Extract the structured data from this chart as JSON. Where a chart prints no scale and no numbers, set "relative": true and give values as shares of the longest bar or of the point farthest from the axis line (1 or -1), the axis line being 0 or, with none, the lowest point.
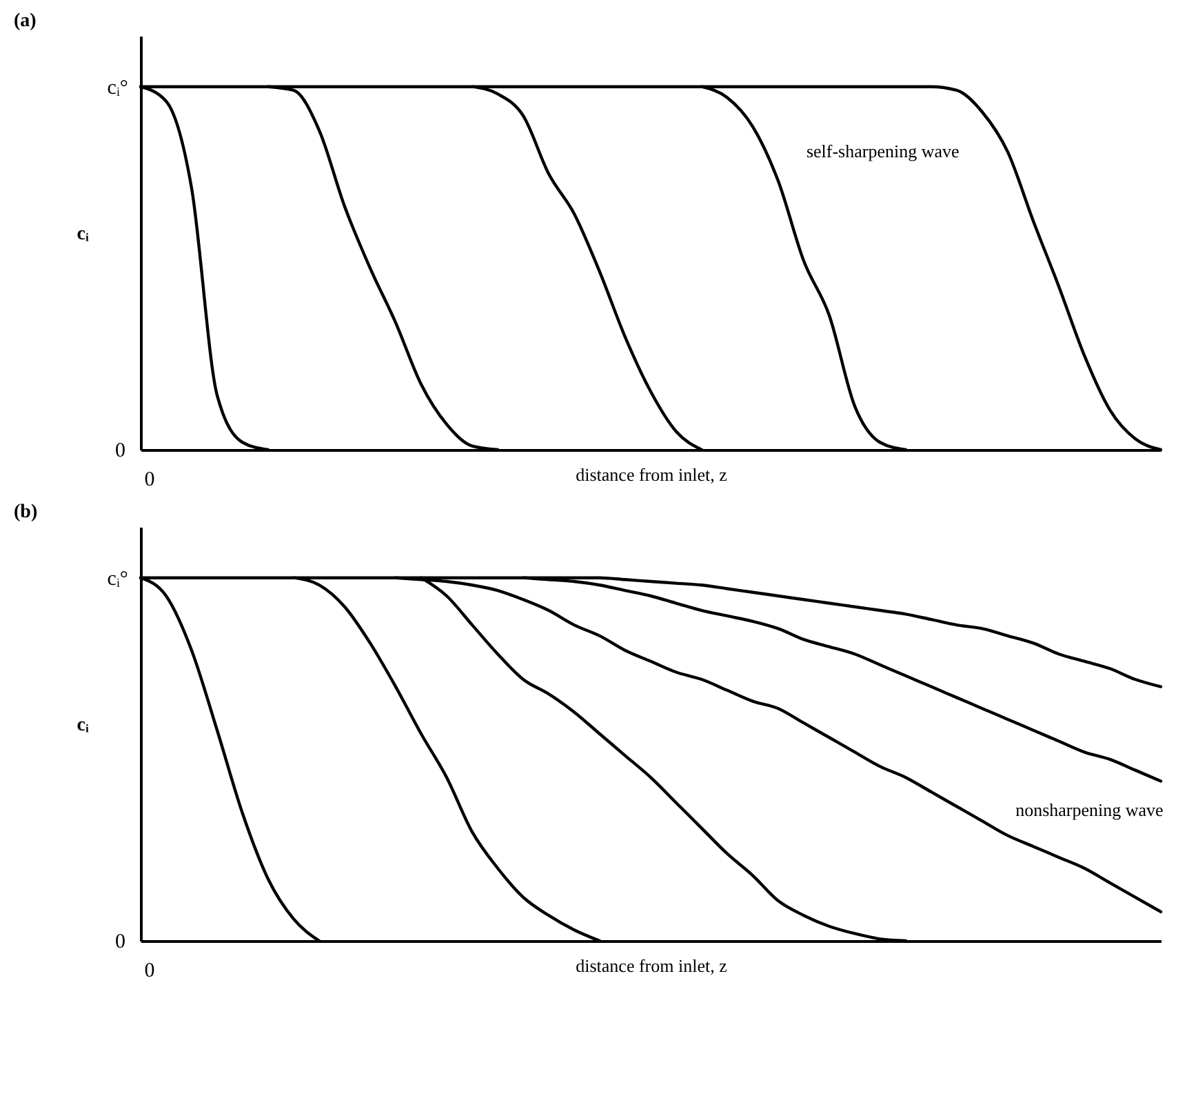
{
  "chart_data": [
    {
      "type": "line",
      "title": "(a)",
      "xlabel": "distance from inlet, z",
      "ylabel": "cᵢ",
      "relative": true,
      "line_style": "solid",
      "categories": [
        null,
        null,
        null,
        null,
        null,
        null,
        null,
        null,
        null,
        null,
        null,
        null,
        null,
        null,
        null,
        null,
        null,
        null,
        null,
        null,
        null,
        null,
        null,
        null,
        null,
        null,
        null,
        null,
        null,
        null,
        null,
        null,
        null,
        null,
        null,
        null,
        null,
        null,
        null,
        null,
        null
      ],
      "annotations": [
        "cᵢ°",
        "0",
        "0",
        "self-sharpening wave"
      ],
      "series": [
        {
          "color": "#000000",
          "values": [
            1,
            0.96,
            0.72,
            0.15,
            0.02,
            0,
            null,
            null,
            null,
            null,
            null,
            null,
            null,
            null,
            null,
            null,
            null,
            null,
            null,
            null,
            null,
            null,
            null,
            null,
            null,
            null,
            null,
            null,
            null,
            null,
            null,
            null,
            null,
            null,
            null,
            null,
            null,
            null,
            null,
            null,
            null
          ]
        },
        {
          "color": "#000000",
          "values": [
            null,
            null,
            null,
            null,
            null,
            1,
            0.99,
            0.88,
            0.67,
            0.5,
            0.35,
            0.18,
            0.07,
            0.01,
            0,
            null,
            null,
            null,
            null,
            null,
            null,
            null,
            null,
            null,
            null,
            null,
            null,
            null,
            null,
            null,
            null,
            null,
            null,
            null,
            null,
            null,
            null,
            null,
            null,
            null,
            null
          ]
        },
        {
          "color": "#000000",
          "values": [
            null,
            null,
            null,
            null,
            null,
            null,
            null,
            null,
            null,
            null,
            null,
            null,
            null,
            1,
            0.98,
            0.92,
            0.76,
            0.65,
            0.49,
            0.31,
            0.16,
            0.05,
            0,
            null,
            null,
            null,
            null,
            null,
            null,
            null,
            null,
            null,
            null,
            null,
            null,
            null,
            null,
            null,
            null,
            null,
            null
          ]
        },
        {
          "color": "#000000",
          "values": [
            null,
            null,
            null,
            null,
            null,
            null,
            null,
            null,
            null,
            null,
            null,
            null,
            null,
            null,
            null,
            null,
            null,
            null,
            null,
            null,
            null,
            null,
            1,
            0.97,
            0.89,
            0.74,
            0.52,
            0.37,
            0.12,
            0.02,
            0,
            null,
            null,
            null,
            null,
            null,
            null,
            null,
            null,
            null,
            null
          ]
        },
        {
          "color": "#000000",
          "values": [
            1,
            1,
            1,
            1,
            1,
            1,
            1,
            1,
            1,
            1,
            1,
            1,
            1,
            1,
            1,
            1,
            1,
            1,
            1,
            1,
            1,
            1,
            1,
            1,
            1,
            1,
            1,
            1,
            1,
            1,
            1,
            1,
            0.99,
            0.93,
            0.82,
            0.63,
            0.45,
            0.26,
            0.11,
            0.03,
            0
          ]
        }
      ]
    },
    {
      "type": "line",
      "title": "(b)",
      "xlabel": "distance from inlet, z",
      "ylabel": "cᵢ",
      "relative": true,
      "line_style": "solid",
      "categories": [
        null,
        null,
        null,
        null,
        null,
        null,
        null,
        null,
        null,
        null,
        null,
        null,
        null,
        null,
        null,
        null,
        null,
        null,
        null,
        null,
        null,
        null,
        null,
        null,
        null,
        null,
        null,
        null,
        null,
        null,
        null,
        null,
        null,
        null,
        null,
        null,
        null,
        null,
        null,
        null,
        null
      ],
      "annotations": [
        "cᵢ°",
        "0",
        "0",
        "nonsharpening wave"
      ],
      "series": [
        {
          "color": "#000000",
          "values": [
            1,
            0.95,
            0.8,
            0.58,
            0.35,
            0.17,
            0.06,
            0,
            null,
            null,
            null,
            null,
            null,
            null,
            null,
            null,
            null,
            null,
            null,
            null,
            null,
            null,
            null,
            null,
            null,
            null,
            null,
            null,
            null,
            null,
            null,
            null,
            null,
            null,
            null,
            null,
            null,
            null,
            null,
            null,
            null
          ]
        },
        {
          "color": "#000000",
          "values": [
            null,
            null,
            null,
            null,
            null,
            null,
            1,
            0.98,
            0.92,
            0.82,
            0.7,
            0.57,
            0.45,
            0.3,
            0.2,
            0.12,
            0.07,
            0.03,
            0,
            null,
            null,
            null,
            null,
            null,
            null,
            null,
            null,
            null,
            null,
            null,
            null,
            null,
            null,
            null,
            null,
            null,
            null,
            null,
            null,
            null,
            null
          ]
        },
        {
          "color": "#000000",
          "values": [
            null,
            null,
            null,
            null,
            null,
            null,
            null,
            null,
            null,
            null,
            null,
            1,
            0.95,
            0.87,
            0.79,
            0.72,
            0.68,
            0.63,
            0.57,
            0.51,
            0.45,
            0.38,
            0.31,
            0.24,
            0.18,
            0.11,
            0.07,
            0.04,
            0.02,
            0.005,
            0,
            null,
            null,
            null,
            null,
            null,
            null,
            null,
            null,
            null,
            null
          ]
        },
        {
          "color": "#000000",
          "values": [
            null,
            null,
            null,
            null,
            null,
            null,
            null,
            null,
            null,
            null,
            1,
            0.995,
            0.99,
            0.98,
            0.965,
            0.94,
            0.91,
            0.87,
            0.84,
            0.8,
            0.77,
            0.74,
            0.72,
            0.69,
            0.66,
            0.64,
            0.6,
            0.56,
            0.52,
            0.48,
            0.45,
            0.41,
            0.37,
            0.33,
            0.29,
            0.26,
            0.23,
            0.2,
            0.16,
            0.12,
            0.08
          ]
        },
        {
          "color": "#000000",
          "values": [
            null,
            null,
            null,
            null,
            null,
            null,
            null,
            null,
            null,
            null,
            null,
            null,
            null,
            null,
            null,
            1,
            0.995,
            0.99,
            0.98,
            0.965,
            0.95,
            0.93,
            0.91,
            0.895,
            0.88,
            0.86,
            0.83,
            0.81,
            0.79,
            0.76,
            0.73,
            0.7,
            0.67,
            0.64,
            0.61,
            0.58,
            0.55,
            0.52,
            0.5,
            0.47,
            0.44
          ]
        },
        {
          "color": "#000000",
          "values": [
            1,
            1,
            1,
            1,
            1,
            1,
            1,
            1,
            1,
            1,
            1,
            1,
            1,
            1,
            1,
            1,
            1,
            1,
            1,
            0.995,
            0.99,
            0.985,
            0.98,
            0.97,
            0.96,
            0.95,
            0.94,
            0.93,
            0.92,
            0.91,
            0.9,
            0.885,
            0.87,
            0.86,
            0.84,
            0.82,
            0.79,
            0.77,
            0.75,
            0.72,
            0.7
          ]
        }
      ]
    }
  ]
}
